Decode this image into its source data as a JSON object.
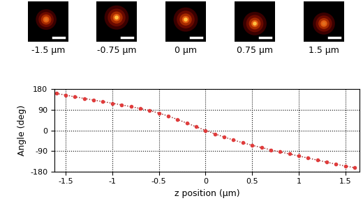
{
  "panels": [
    {
      "label": "-1.5 μm"
    },
    {
      "label": "-0.75 μm"
    },
    {
      "label": "0 μm"
    },
    {
      "label": "0.75 μm"
    },
    {
      "label": "1.5 μm"
    }
  ],
  "chart_data": {
    "type": "line",
    "x_label": "z position (μm)",
    "y_label": "Angle (deg)",
    "x": [
      -1.6,
      -1.5,
      -1.4,
      -1.3,
      -1.2,
      -1.1,
      -1.0,
      -0.9,
      -0.8,
      -0.7,
      -0.6,
      -0.5,
      -0.4,
      -0.3,
      -0.2,
      -0.1,
      0,
      0.1,
      0.2,
      0.3,
      0.4,
      0.5,
      0.6,
      0.7,
      0.8,
      0.9,
      1.0,
      1.1,
      1.2,
      1.3,
      1.4,
      1.5,
      1.6
    ],
    "values": [
      162,
      155,
      147,
      140,
      133,
      126,
      119,
      112,
      104,
      96,
      87,
      76,
      63,
      48,
      32,
      16,
      0,
      -15,
      -29,
      -42,
      -54,
      -65,
      -75,
      -85,
      -94,
      -103,
      -112,
      -121,
      -130,
      -139,
      -148,
      -156,
      -163
    ],
    "color": "#e03c3c",
    "marker": "o",
    "line_style": "dotted",
    "xlim": [
      -1.62,
      1.65
    ],
    "xticks": [
      -1.5,
      -1,
      -0.5,
      0,
      0.5,
      1,
      1.5
    ],
    "ylim": [
      -180,
      180
    ],
    "yticks": [
      -180,
      -90,
      0,
      90,
      180
    ],
    "grid": true
  }
}
